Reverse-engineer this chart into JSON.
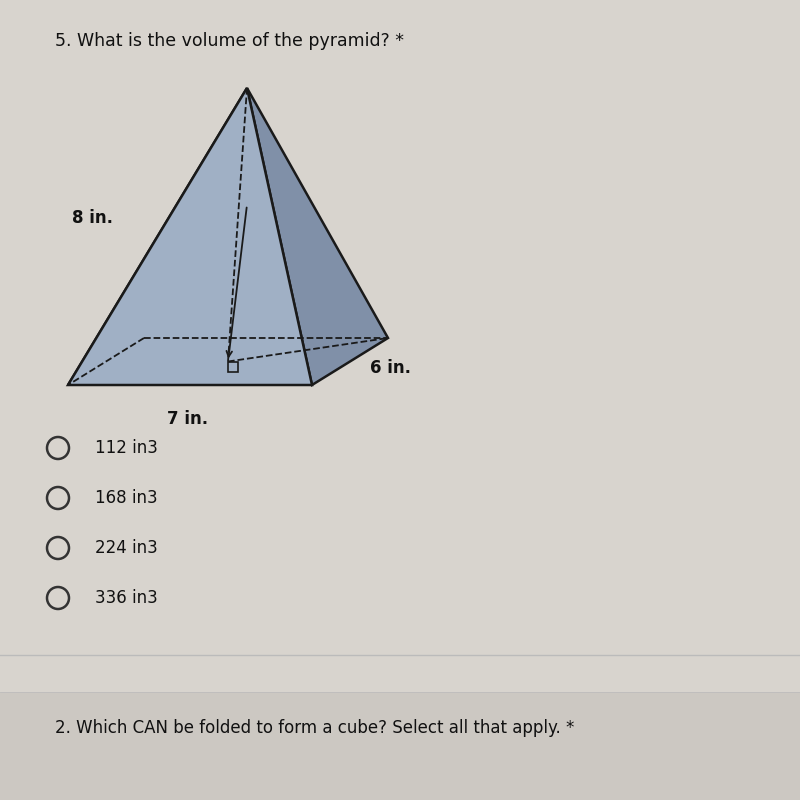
{
  "title": "5. What is the volume of the pyramid? *",
  "title_fontsize": 12.5,
  "bg_color": "#d8d4ce",
  "pyramid_face_left": "#9baaba",
  "pyramid_face_right": "#8090a8",
  "pyramid_face_front": "#a0b0c5",
  "pyramid_edge_color": "#1a1a1a",
  "dim_8": "8 in.",
  "dim_6": "6 in.",
  "dim_7": "7 in.",
  "choices": [
    "112 in3",
    "168 in3",
    "224 in3",
    "336 in3"
  ],
  "footer_text": "2. Which CAN be folded to form a cube? Select all that apply. *"
}
